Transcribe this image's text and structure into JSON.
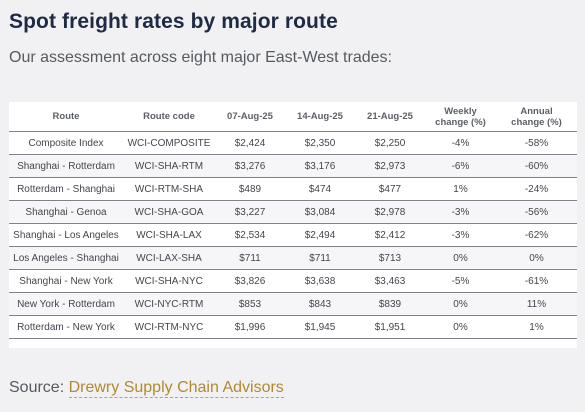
{
  "header": {
    "title": "Spot freight rates by major route",
    "subtitle": "Our assessment across eight major East-West trades:"
  },
  "table": {
    "columns": [
      {
        "line1": "Route",
        "line2": ""
      },
      {
        "line1": "Route code",
        "line2": ""
      },
      {
        "line1": "07-Aug-25",
        "line2": ""
      },
      {
        "line1": "14-Aug-25",
        "line2": ""
      },
      {
        "line1": "21-Aug-25",
        "line2": ""
      },
      {
        "line1": "Weekly",
        "line2": "change (%)"
      },
      {
        "line1": "Annual",
        "line2": "change (%)"
      }
    ],
    "rows": [
      [
        "Composite Index",
        "WCI-COMPOSITE",
        "$2,424",
        "$2,350",
        "$2,250",
        "-4%",
        "-58%"
      ],
      [
        "Shanghai - Rotterdam",
        "WCI-SHA-RTM",
        "$3,276",
        "$3,176",
        "$2,973",
        "-6%",
        "-60%"
      ],
      [
        "Rotterdam - Shanghai",
        "WCI-RTM-SHA",
        "$489",
        "$474",
        "$477",
        "1%",
        "-24%"
      ],
      [
        "Shanghai - Genoa",
        "WCI-SHA-GOA",
        "$3,227",
        "$3,084",
        "$2,978",
        "-3%",
        "-56%"
      ],
      [
        "Shanghai - Los Angeles",
        "WCI-SHA-LAX",
        "$2,534",
        "$2,494",
        "$2,412",
        "-3%",
        "-62%"
      ],
      [
        "Los Angeles - Shanghai",
        "WCI-LAX-SHA",
        "$711",
        "$711",
        "$713",
        "0%",
        "0%"
      ],
      [
        "Shanghai - New York",
        "WCI-SHA-NYC",
        "$3,826",
        "$3,638",
        "$3,463",
        "-5%",
        "-61%"
      ],
      [
        "New York - Rotterdam",
        "WCI-NYC-RTM",
        "$853",
        "$843",
        "$839",
        "0%",
        "11%"
      ],
      [
        "Rotterdam - New York",
        "WCI-RTM-NYC",
        "$1,996",
        "$1,945",
        "$1,951",
        "0%",
        "1%"
      ]
    ]
  },
  "source": {
    "prefix": "Source:",
    "link_text": "Drewry Supply Chain Advisors"
  },
  "colors": {
    "background": "#f1f1f3",
    "title": "#1f2a44",
    "link": "#b08a2e"
  }
}
